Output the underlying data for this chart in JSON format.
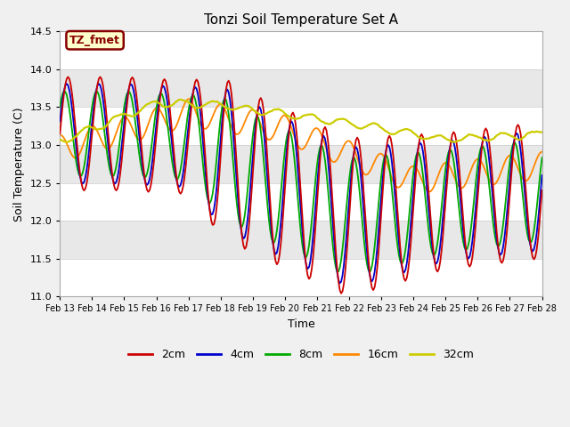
{
  "title": "Tonzi Soil Temperature Set A",
  "xlabel": "Time",
  "ylabel": "Soil Temperature (C)",
  "ylim": [
    11.0,
    14.5
  ],
  "xlim": [
    0,
    360
  ],
  "fig_bg": "#f0f0f0",
  "plot_bg": "#e8e8e8",
  "annotation_text": "TZ_fmet",
  "annotation_bg": "#ffffcc",
  "annotation_border": "#880000",
  "annotation_text_color": "#880000",
  "colors": {
    "2cm": "#cc0000",
    "4cm": "#0000cc",
    "8cm": "#00aa00",
    "16cm": "#ff8800",
    "32cm": "#cccc00"
  },
  "legend_labels": [
    "2cm",
    "4cm",
    "8cm",
    "16cm",
    "32cm"
  ],
  "x_tick_labels": [
    "Feb 13",
    "Feb 14",
    "Feb 15",
    "Feb 16",
    "Feb 17",
    "Feb 18",
    "Feb 19",
    "Feb 20",
    "Feb 21",
    "Feb 22",
    "Feb 23",
    "Feb 24",
    "Feb 25",
    "Feb 26",
    "Feb 27",
    "Feb 28"
  ],
  "x_tick_positions": [
    0,
    24,
    48,
    72,
    96,
    120,
    144,
    168,
    192,
    216,
    240,
    264,
    288,
    312,
    336,
    360
  ],
  "yticks": [
    11.0,
    11.5,
    12.0,
    12.5,
    13.0,
    13.5,
    14.0,
    14.5
  ],
  "grid_colors": [
    "#ffffff",
    "#d8d8d8"
  ]
}
